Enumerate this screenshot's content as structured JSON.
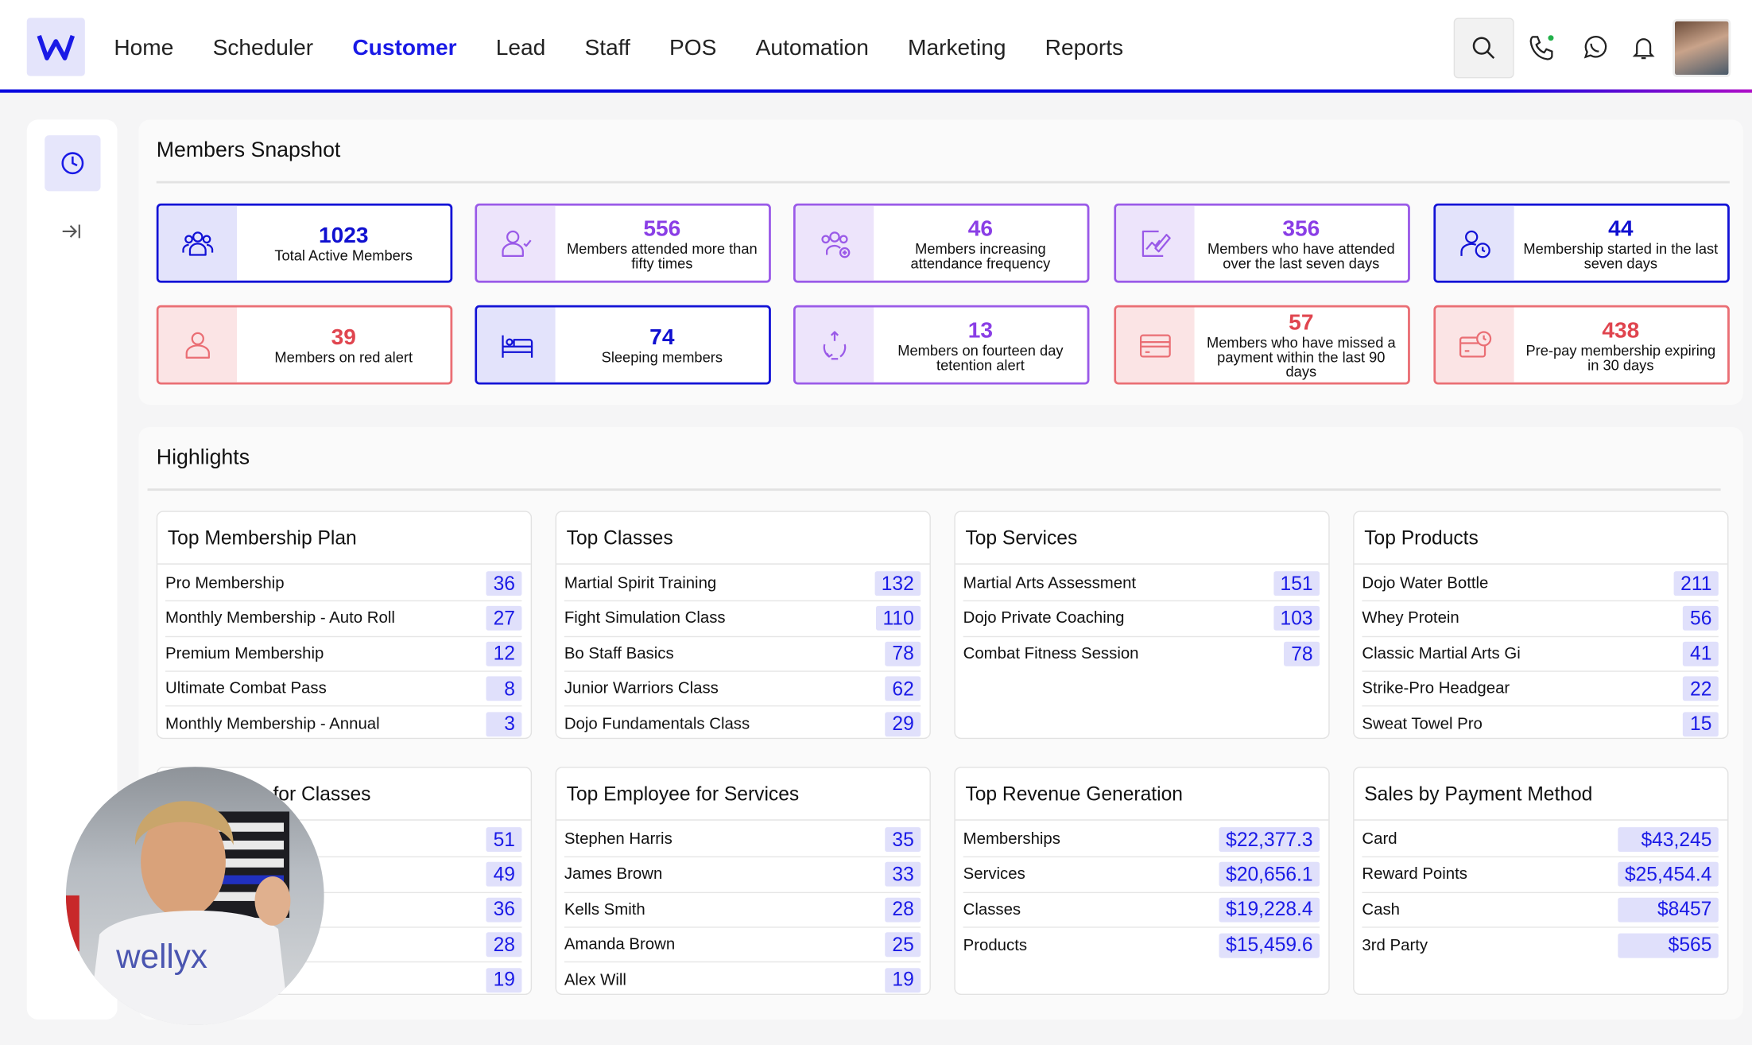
{
  "nav": {
    "items": [
      "Home",
      "Scheduler",
      "Customer",
      "Lead",
      "Staff",
      "POS",
      "Automation",
      "Marketing",
      "Reports"
    ],
    "active": "Customer"
  },
  "colors": {
    "blue": "#1a1ae6",
    "purple": "#8a3ee6",
    "red": "#e0454f"
  },
  "snapshot": {
    "title": "Members Snapshot",
    "cards": [
      {
        "value": "1023",
        "label": "Total Active Members",
        "theme": "blue",
        "icon": "users-icon"
      },
      {
        "value": "556",
        "label": "Members attended more than fifty times",
        "theme": "purple",
        "icon": "user-check-icon"
      },
      {
        "value": "46",
        "label": "Members increasing attendance frequency",
        "theme": "purple",
        "icon": "users-plus-icon"
      },
      {
        "value": "356",
        "label": "Members who have attended over the last seven days",
        "theme": "purple",
        "icon": "chart-edit-icon"
      },
      {
        "value": "44",
        "label": "Membership started in the last seven days",
        "theme": "blue",
        "icon": "user-clock-icon"
      },
      {
        "value": "39",
        "label": "Members on red alert",
        "theme": "red",
        "icon": "user-icon"
      },
      {
        "value": "74",
        "label": "Sleeping members",
        "theme": "blue",
        "icon": "bed-icon"
      },
      {
        "value": "13",
        "label": "Members on fourteen day tetention alert",
        "theme": "purple",
        "icon": "recycle-icon"
      },
      {
        "value": "57",
        "label": "Members who have missed a payment within the last 90 days",
        "theme": "red",
        "icon": "credit-card-icon"
      },
      {
        "value": "438",
        "label": "Pre-pay membership expiring in 30 days",
        "theme": "red",
        "icon": "card-clock-icon"
      }
    ]
  },
  "highlights": {
    "title": "Highlights",
    "cards": [
      {
        "title": "Top Membership Plan",
        "rows": [
          {
            "label": "Pro Membership",
            "value": "36"
          },
          {
            "label": "Monthly Membership - Auto Roll",
            "value": "27"
          },
          {
            "label": "Premium Membership",
            "value": "12"
          },
          {
            "label": "Ultimate Combat Pass",
            "value": "8"
          },
          {
            "label": "Monthly Membership - Annual",
            "value": "3"
          }
        ]
      },
      {
        "title": "Top Classes",
        "rows": [
          {
            "label": "Martial Spirit Training",
            "value": "132"
          },
          {
            "label": "Fight Simulation Class",
            "value": "110"
          },
          {
            "label": "Bo Staff Basics",
            "value": "78"
          },
          {
            "label": "Junior Warriors Class",
            "value": "62"
          },
          {
            "label": "Dojo Fundamentals Class",
            "value": "29"
          }
        ]
      },
      {
        "title": "Top Services",
        "rows": [
          {
            "label": "Martial Arts Assessment",
            "value": "151"
          },
          {
            "label": "Dojo Private Coaching",
            "value": "103"
          },
          {
            "label": "Combat Fitness Session",
            "value": "78"
          }
        ]
      },
      {
        "title": "Top Products",
        "rows": [
          {
            "label": "Dojo Water Bottle",
            "value": "211"
          },
          {
            "label": "Whey Protein",
            "value": "56"
          },
          {
            "label": "Classic Martial Arts Gi",
            "value": "41"
          },
          {
            "label": "Strike-Pro Headgear",
            "value": "22"
          },
          {
            "label": "Sweat Towel Pro",
            "value": "15"
          }
        ]
      },
      {
        "title": "es for Classes",
        "rows": [
          {
            "label": "",
            "value": "51"
          },
          {
            "label": "",
            "value": "49"
          },
          {
            "label": "",
            "value": "36"
          },
          {
            "label": "",
            "value": "28"
          },
          {
            "label": "",
            "value": "19"
          }
        ]
      },
      {
        "title": "Top Employee for Services",
        "rows": [
          {
            "label": "Stephen Harris",
            "value": "35"
          },
          {
            "label": "James Brown",
            "value": "33"
          },
          {
            "label": "Kells Smith",
            "value": "28"
          },
          {
            "label": "Amanda Brown",
            "value": "25"
          },
          {
            "label": "Alex Will",
            "value": "19"
          }
        ]
      },
      {
        "title": "Top Revenue Generation",
        "wide": true,
        "rows": [
          {
            "label": "Memberships",
            "value": "$22,377.3"
          },
          {
            "label": "Services",
            "value": "$20,656.1"
          },
          {
            "label": "Classes",
            "value": "$19,228.4"
          },
          {
            "label": "Products",
            "value": "$15,459.6"
          }
        ]
      },
      {
        "title": "Sales by Payment Method",
        "wide": true,
        "rows": [
          {
            "label": "Card",
            "value": "$43,245"
          },
          {
            "label": "Reward Points",
            "value": "$25,454.4"
          },
          {
            "label": "Cash",
            "value": "$8457"
          },
          {
            "label": "3rd Party",
            "value": "$565"
          }
        ]
      }
    ]
  },
  "video": {
    "shirt_text": "wellyx"
  }
}
